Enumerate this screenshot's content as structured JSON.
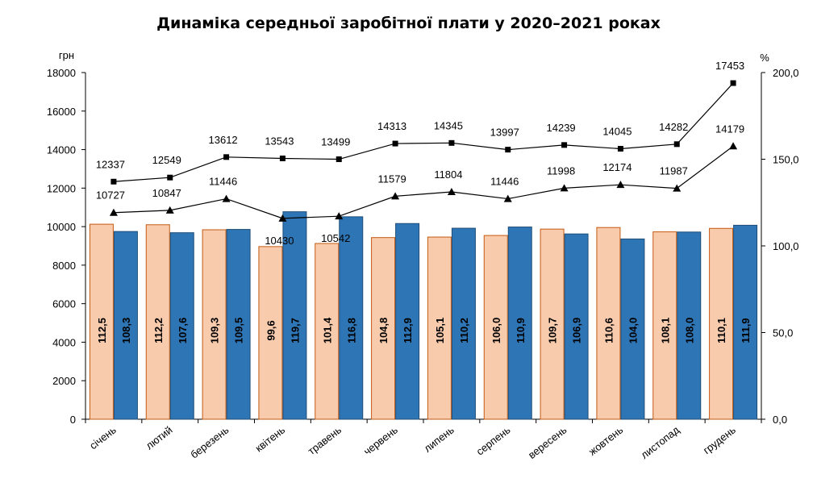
{
  "chart_data": {
    "type": "bar",
    "title": "Динаміка середньої заробітної плати у 2020–2021 роках",
    "y_left_unit": "грн",
    "y_right_unit": "%",
    "ylim_left": [
      0,
      18000
    ],
    "ylim_right": [
      0,
      200
    ],
    "y_left_ticks": [
      "0",
      "2000",
      "4000",
      "6000",
      "8000",
      "10000",
      "12000",
      "14000",
      "16000",
      "18000"
    ],
    "y_right_ticks": [
      "0,0",
      "50,0",
      "100,0",
      "150,0",
      "200,0"
    ],
    "grid": false,
    "categories": [
      "січень",
      "лютий",
      "березень",
      "квітень",
      "травень",
      "червень",
      "липень",
      "серпень",
      "вересень",
      "жовтень",
      "листопад",
      "грудень"
    ],
    "bar_series": [
      {
        "color": "#f8cbad",
        "border": "#c55a11",
        "values": [
          112.5,
          112.2,
          109.3,
          99.6,
          101.4,
          104.8,
          105.1,
          106.0,
          109.7,
          110.6,
          108.1,
          110.1
        ],
        "labels": [
          "112,5",
          "112,2",
          "109,3",
          "99,6",
          "101,4",
          "104,8",
          "105,1",
          "106,0",
          "109,7",
          "110,6",
          "108,1",
          "110,1"
        ]
      },
      {
        "color": "#2e75b6",
        "border": "#1f4e79",
        "values": [
          108.3,
          107.6,
          109.5,
          119.7,
          116.8,
          112.9,
          110.2,
          110.9,
          106.9,
          104.0,
          108.0,
          111.9
        ],
        "labels": [
          "108,3",
          "107,6",
          "109,5",
          "119,7",
          "116,8",
          "112,9",
          "110,2",
          "110,9",
          "106,9",
          "104,0",
          "108,0",
          "111,9"
        ]
      }
    ],
    "line_series": [
      {
        "marker": "square",
        "values": [
          12337,
          12549,
          13612,
          13543,
          13499,
          14313,
          14345,
          13997,
          14239,
          14045,
          14282,
          17453
        ],
        "labels": [
          "12337",
          "12549",
          "13612",
          "13543",
          "13499",
          "14313",
          "14345",
          "13997",
          "14239",
          "14045",
          "14282",
          "17453"
        ]
      },
      {
        "marker": "triangle",
        "values": [
          10727,
          10847,
          11446,
          10430,
          10542,
          11579,
          11804,
          11446,
          11998,
          12174,
          11987,
          14179
        ],
        "labels": [
          "10727",
          "10847",
          "11446",
          "10430",
          "10542",
          "11579",
          "11804",
          "11446",
          "11998",
          "12174",
          "11987",
          "14179"
        ]
      }
    ]
  }
}
